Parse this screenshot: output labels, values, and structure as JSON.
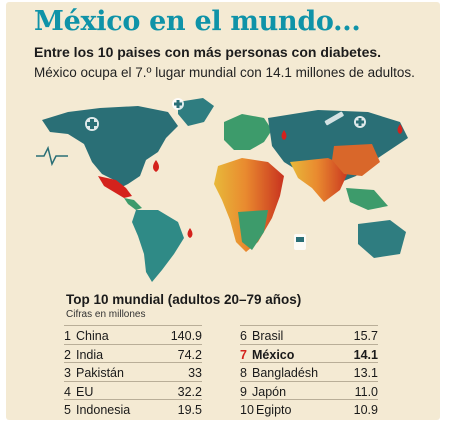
{
  "header": {
    "title": "México en el mundo...",
    "subtitle": "Entre los 10 paises con más personas con diabetes.",
    "intro": "México ocupa el 7.º lugar mundial con 14.1 millones de adultos."
  },
  "colors": {
    "title": "#0f93a8",
    "highlight": "#d4221c",
    "background": "#f4ead3",
    "ocean_teal": "#2a6f76",
    "land_green": "#3d9b6b",
    "land_orange": "#e98a2f",
    "land_red": "#c8321f"
  },
  "map_icons": [
    "medical-cross-icon",
    "syringe-icon",
    "blood-drop-icon",
    "glucometer-icon",
    "heart-pulse-icon"
  ],
  "chart_data": {
    "type": "table",
    "title": "Top 10 mundial (adultos 20–79 años)",
    "note": "Cifras en millones",
    "highlight_rank": 7,
    "rows": [
      {
        "rank": "1",
        "country": "China",
        "value": "140.9"
      },
      {
        "rank": "2",
        "country": "India",
        "value": "74.2"
      },
      {
        "rank": "3",
        "country": "Pakistán",
        "value": "33"
      },
      {
        "rank": "4",
        "country": "EU",
        "value": "32.2"
      },
      {
        "rank": "5",
        "country": "Indonesia",
        "value": "19.5"
      },
      {
        "rank": "6",
        "country": "Brasil",
        "value": "15.7"
      },
      {
        "rank": "7",
        "country": "México",
        "value": "14.1"
      },
      {
        "rank": "8",
        "country": "Bangladésh",
        "value": "13.1"
      },
      {
        "rank": "9",
        "country": "Japón",
        "value": "11.0"
      },
      {
        "rank": "10",
        "country": "Egipto",
        "value": "10.9"
      }
    ]
  }
}
